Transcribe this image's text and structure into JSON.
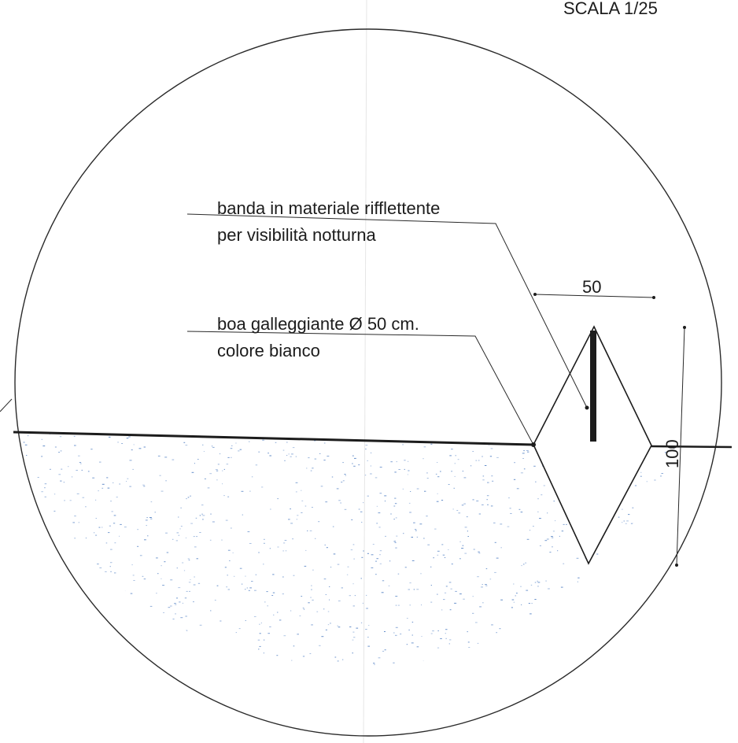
{
  "title": {
    "scale": "SCALA  1/25"
  },
  "labels": {
    "reflective_band_line1": "banda in materiale rifflettente",
    "reflective_band_line2": "per visibilità notturna",
    "buoy_line1": "boa galleggiante Ø 50 cm.",
    "buoy_line2": "colore bianco"
  },
  "dimensions": {
    "width": "50",
    "height": "100"
  },
  "colors": {
    "ink": "#1c1c1c",
    "water_dots": "#5a86c6",
    "paper": "#ffffff"
  }
}
